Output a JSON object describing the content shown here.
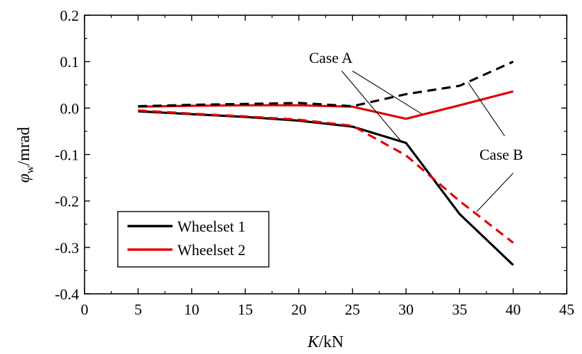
{
  "chart_data": {
    "type": "line",
    "xlabel": {
      "italic": "K",
      "rest": "/kN"
    },
    "ylabel": {
      "italic": "φ",
      "sub": "w",
      "rest": "/mrad"
    },
    "xlim": [
      0,
      45
    ],
    "ylim": [
      -0.4,
      0.2
    ],
    "xticks": [
      0,
      5,
      10,
      15,
      20,
      25,
      30,
      35,
      40,
      45
    ],
    "yticks": [
      -0.4,
      -0.3,
      -0.2,
      -0.1,
      0.0,
      0.1,
      0.2
    ],
    "ytick_labels": [
      "-0.4",
      "-0.3",
      "-0.2",
      "-0.1",
      "0.0",
      "0.1",
      "0.2"
    ],
    "grid": false,
    "legend_position": "bottom-left",
    "legend": [
      {
        "label": "Wheelset 1",
        "color": "#000000"
      },
      {
        "label": "Wheelset 2",
        "color": "#e00000"
      }
    ],
    "x": [
      5,
      10,
      15,
      20,
      25,
      30,
      35,
      40
    ],
    "series": [
      {
        "wheelset": "Wheelset 1",
        "case": "Case A",
        "style": "solid",
        "color": "#000000",
        "values": [
          -0.007,
          -0.013,
          -0.019,
          -0.027,
          -0.04,
          -0.075,
          -0.228,
          -0.338
        ]
      },
      {
        "wheelset": "Wheelset 2",
        "case": "Case A",
        "style": "solid",
        "color": "#e00000",
        "values": [
          0.003,
          0.005,
          0.006,
          0.006,
          0.003,
          -0.023,
          0.006,
          0.036
        ]
      },
      {
        "wheelset": "Wheelset 1",
        "case": "Case B",
        "style": "dashed",
        "color": "#000000",
        "values": [
          0.004,
          0.007,
          0.009,
          0.011,
          0.004,
          0.03,
          0.048,
          0.1
        ]
      },
      {
        "wheelset": "Wheelset 2",
        "case": "Case B",
        "style": "dashed",
        "color": "#e00000",
        "values": [
          -0.005,
          -0.012,
          -0.018,
          -0.025,
          -0.038,
          -0.102,
          -0.2,
          -0.29
        ]
      }
    ],
    "annotations": [
      {
        "text": "Case A"
      },
      {
        "text": "Case B"
      }
    ]
  }
}
